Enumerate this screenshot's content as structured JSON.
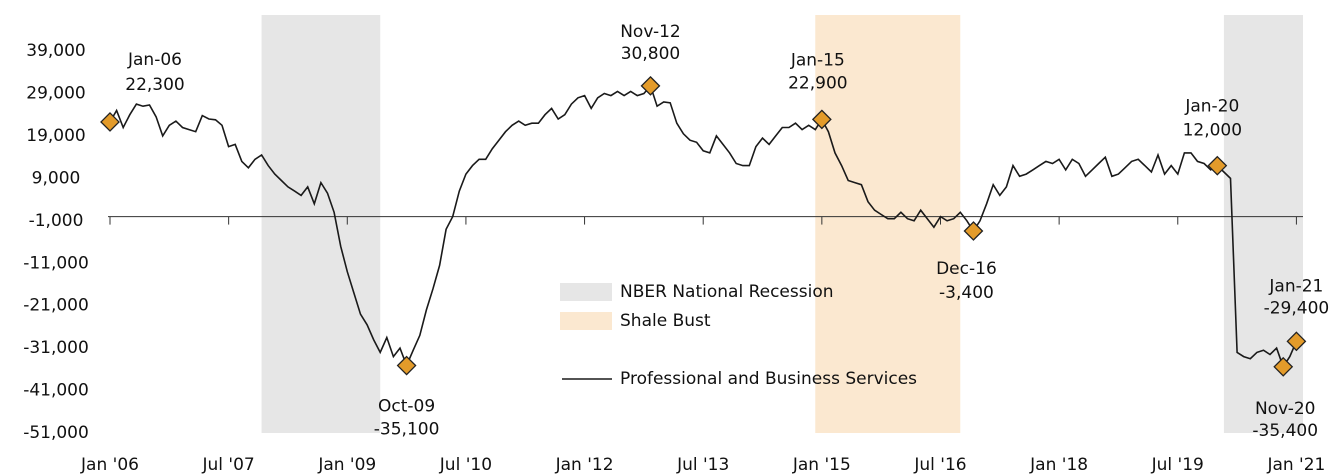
{
  "chart_data": {
    "type": "line",
    "x": [
      "2006-01",
      "2006-02",
      "2006-03",
      "2006-04",
      "2006-05",
      "2006-06",
      "2006-07",
      "2006-08",
      "2006-09",
      "2006-10",
      "2006-11",
      "2006-12",
      "2007-01",
      "2007-02",
      "2007-03",
      "2007-04",
      "2007-05",
      "2007-06",
      "2007-07",
      "2007-08",
      "2007-09",
      "2007-10",
      "2007-11",
      "2007-12",
      "2008-01",
      "2008-02",
      "2008-03",
      "2008-04",
      "2008-05",
      "2008-06",
      "2008-07",
      "2008-08",
      "2008-09",
      "2008-10",
      "2008-11",
      "2008-12",
      "2009-01",
      "2009-02",
      "2009-03",
      "2009-04",
      "2009-05",
      "2009-06",
      "2009-07",
      "2009-08",
      "2009-09",
      "2009-10",
      "2009-11",
      "2009-12",
      "2010-01",
      "2010-02",
      "2010-03",
      "2010-04",
      "2010-05",
      "2010-06",
      "2010-07",
      "2010-08",
      "2010-09",
      "2010-10",
      "2010-11",
      "2010-12",
      "2011-01",
      "2011-02",
      "2011-03",
      "2011-04",
      "2011-05",
      "2011-06",
      "2011-07",
      "2011-08",
      "2011-09",
      "2011-10",
      "2011-11",
      "2011-12",
      "2012-01",
      "2012-02",
      "2012-03",
      "2012-04",
      "2012-05",
      "2012-06",
      "2012-07",
      "2012-08",
      "2012-09",
      "2012-10",
      "2012-11",
      "2012-12",
      "2013-01",
      "2013-02",
      "2013-03",
      "2013-04",
      "2013-05",
      "2013-06",
      "2013-07",
      "2013-08",
      "2013-09",
      "2013-10",
      "2013-11",
      "2013-12",
      "2014-01",
      "2014-02",
      "2014-03",
      "2014-04",
      "2014-05",
      "2014-06",
      "2014-07",
      "2014-08",
      "2014-09",
      "2014-10",
      "2014-11",
      "2014-12",
      "2015-01",
      "2015-02",
      "2015-03",
      "2015-04",
      "2015-05",
      "2015-06",
      "2015-07",
      "2015-08",
      "2015-09",
      "2015-10",
      "2015-11",
      "2015-12",
      "2016-01",
      "2016-02",
      "2016-03",
      "2016-04",
      "2016-05",
      "2016-06",
      "2016-07",
      "2016-08",
      "2016-09",
      "2016-10",
      "2016-11",
      "2016-12",
      "2017-01",
      "2017-02",
      "2017-03",
      "2017-04",
      "2017-05",
      "2017-06",
      "2017-07",
      "2017-08",
      "2017-09",
      "2017-10",
      "2017-11",
      "2017-12",
      "2018-01",
      "2018-02",
      "2018-03",
      "2018-04",
      "2018-05",
      "2018-06",
      "2018-07",
      "2018-08",
      "2018-09",
      "2018-10",
      "2018-11",
      "2018-12",
      "2019-01",
      "2019-02",
      "2019-03",
      "2019-04",
      "2019-05",
      "2019-06",
      "2019-07",
      "2019-08",
      "2019-09",
      "2019-10",
      "2019-11",
      "2019-12",
      "2020-01",
      "2020-02",
      "2020-03",
      "2020-04",
      "2020-05",
      "2020-06",
      "2020-07",
      "2020-08",
      "2020-09",
      "2020-10",
      "2020-11",
      "2020-12",
      "2021-01"
    ],
    "series": [
      {
        "name": "Professional and Business Services",
        "color": "#1a1a1a",
        "values": [
          22300,
          25000,
          21000,
          24000,
          26500,
          26000,
          26300,
          23500,
          19000,
          21500,
          22500,
          21000,
          20500,
          20000,
          23800,
          23000,
          22800,
          21500,
          16500,
          17000,
          13000,
          11500,
          13500,
          14500,
          12000,
          10000,
          8500,
          7000,
          6000,
          5000,
          7000,
          3000,
          8000,
          5500,
          1000,
          -7000,
          -13000,
          -18000,
          -23000,
          -25500,
          -29000,
          -32000,
          -28500,
          -33000,
          -31000,
          -35100,
          -31500,
          -28000,
          -22000,
          -17000,
          -11500,
          -3000,
          0,
          6000,
          10000,
          12000,
          13500,
          13500,
          16000,
          18000,
          20000,
          21500,
          22500,
          21500,
          22000,
          22000,
          24000,
          25500,
          23000,
          24000,
          26500,
          28000,
          28500,
          25500,
          28000,
          29000,
          28500,
          29500,
          28500,
          29500,
          28500,
          29000,
          30800,
          26000,
          27000,
          26800,
          22000,
          19500,
          18000,
          17500,
          15500,
          15000,
          19000,
          17000,
          15000,
          12500,
          12000,
          12000,
          16500,
          18500,
          17000,
          19000,
          21000,
          21000,
          22000,
          20500,
          21500,
          20500,
          22900,
          20000,
          15000,
          12000,
          8500,
          8000,
          7500,
          3500,
          1500,
          500,
          -500,
          -500,
          1000,
          -500,
          -1000,
          1500,
          -500,
          -2500,
          0,
          -1000,
          -500,
          1000,
          -1000,
          -3400,
          -1000,
          3000,
          7500,
          5000,
          7000,
          12000,
          9500,
          10000,
          11000,
          12000,
          13000,
          12500,
          13500,
          11000,
          13500,
          12500,
          9500,
          11000,
          12500,
          14000,
          9500,
          10000,
          11500,
          13000,
          13500,
          12000,
          10500,
          14500,
          10000,
          12000,
          10000,
          15000,
          15000,
          13000,
          12500,
          11000,
          12000,
          10500,
          9000,
          -32000,
          -33000,
          -33500,
          -32000,
          -31500,
          -32500,
          -31000,
          -35400,
          -33000,
          -29400
        ]
      }
    ],
    "shaded_regions": [
      {
        "name": "NBER National Recession",
        "color": "#e6e6e6",
        "periods": [
          [
            "2007-12",
            "2009-06"
          ],
          [
            "2020-02",
            "2021-02"
          ]
        ]
      },
      {
        "name": "Shale Bust",
        "color": "#fbe8d0",
        "periods": [
          [
            "2014-12",
            "2016-10"
          ]
        ]
      }
    ],
    "annotations": [
      {
        "x": "2006-01",
        "date_label": "Jan-06",
        "value": 22300,
        "value_label": "22,300"
      },
      {
        "x": "2009-10",
        "date_label": "Oct-09",
        "value": -35100,
        "value_label": "-35,100"
      },
      {
        "x": "2012-11",
        "date_label": "Nov-12",
        "value": 30800,
        "value_label": "30,800"
      },
      {
        "x": "2015-01",
        "date_label": "Jan-15",
        "value": 22900,
        "value_label": "22,900"
      },
      {
        "x": "2016-12",
        "date_label": "Dec-16",
        "value": -3400,
        "value_label": "-3,400"
      },
      {
        "x": "2020-01",
        "date_label": "Jan-20",
        "value": 12000,
        "value_label": "12,000"
      },
      {
        "x": "2020-11",
        "date_label": "Nov-20",
        "value": -35400,
        "value_label": "-35,400"
      },
      {
        "x": "2021-01",
        "date_label": "Jan-21",
        "value": -29400,
        "value_label": "-29,400"
      }
    ],
    "marker_color": "#e39b2a",
    "xlim": [
      "2006-01",
      "2021-02"
    ],
    "xticks": [
      {
        "value": "2006-01",
        "label": "Jan '06"
      },
      {
        "value": "2007-07",
        "label": "Jul '07"
      },
      {
        "value": "2009-01",
        "label": "Jan '09"
      },
      {
        "value": "2010-07",
        "label": "Jul '10"
      },
      {
        "value": "2012-01",
        "label": "Jan '12"
      },
      {
        "value": "2013-07",
        "label": "Jul '13"
      },
      {
        "value": "2015-01",
        "label": "Jan '15"
      },
      {
        "value": "2016-07",
        "label": "Jul '16"
      },
      {
        "value": "2018-01",
        "label": "Jan '18"
      },
      {
        "value": "2019-07",
        "label": "Jul '19"
      },
      {
        "value": "2021-01",
        "label": "Jan '21"
      }
    ],
    "ylim": [
      -51000,
      47500
    ],
    "yticks": [
      {
        "value": 39000,
        "label": "39,000"
      },
      {
        "value": 29000,
        "label": "29,000"
      },
      {
        "value": 19000,
        "label": "19,000"
      },
      {
        "value": 9000,
        "label": "9,000"
      },
      {
        "value": -1000,
        "label": "-1,000"
      },
      {
        "value": -11000,
        "label": "-11,000"
      },
      {
        "value": -21000,
        "label": "-21,000"
      },
      {
        "value": -31000,
        "label": "-31,000"
      },
      {
        "value": -41000,
        "label": "-41,000"
      },
      {
        "value": -51000,
        "label": "-51,000"
      }
    ]
  }
}
